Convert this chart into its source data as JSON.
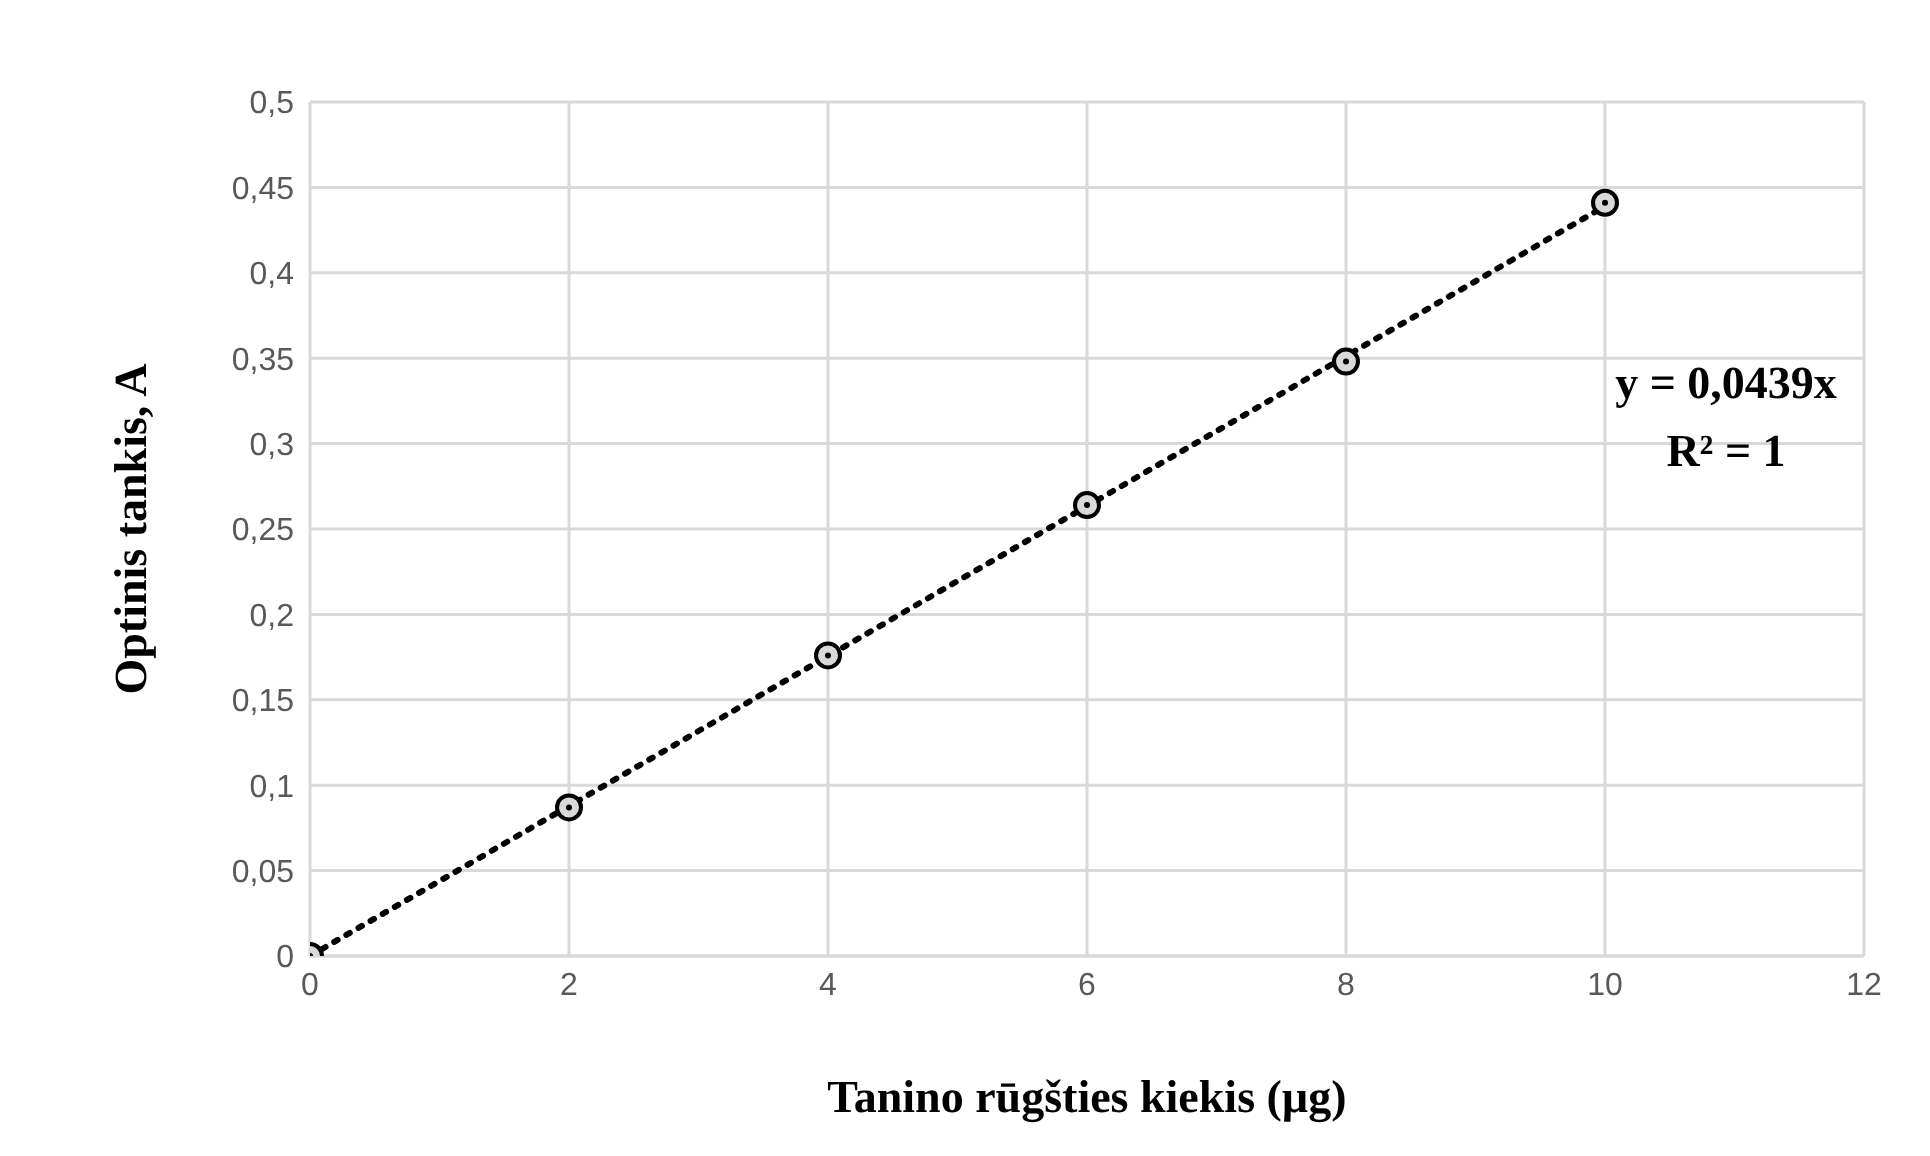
{
  "chart_data": {
    "type": "scatter",
    "xlabel": "Tanino rūgšties kiekis (µg)",
    "ylabel": "Optinis tankis, A",
    "x": [
      0,
      2,
      4,
      6,
      8,
      10
    ],
    "series": [
      {
        "color": "#000000",
        "marker": "circle",
        "values": [
          0,
          0.087,
          0.176,
          0.264,
          0.348,
          0.441
        ]
      },
      {
        "type": "line",
        "color": "#000000",
        "line_style": "dotted",
        "x": [
          0,
          10
        ],
        "values": [
          0,
          0.439
        ]
      }
    ],
    "xlim": [
      0,
      12
    ],
    "xticks": [
      0,
      2,
      4,
      6,
      8,
      10,
      12
    ],
    "ylim": [
      0,
      0.5
    ],
    "yticks": [
      0,
      {
        "value": 0.05,
        "label": "0,05"
      },
      {
        "value": 0.1,
        "label": "0,1"
      },
      {
        "value": 0.15,
        "label": "0,15"
      },
      {
        "value": 0.2,
        "label": "0,2"
      },
      {
        "value": 0.25,
        "label": "0,25"
      },
      {
        "value": 0.3,
        "label": "0,3"
      },
      {
        "value": 0.35,
        "label": "0,35"
      },
      {
        "value": 0.4,
        "label": "0,4"
      },
      {
        "value": 0.45,
        "label": "0,45"
      },
      {
        "value": 0.5,
        "label": "0,5"
      }
    ],
    "grid": true,
    "annotations": [
      "y = 0,0439x",
      "R² = 1"
    ]
  }
}
